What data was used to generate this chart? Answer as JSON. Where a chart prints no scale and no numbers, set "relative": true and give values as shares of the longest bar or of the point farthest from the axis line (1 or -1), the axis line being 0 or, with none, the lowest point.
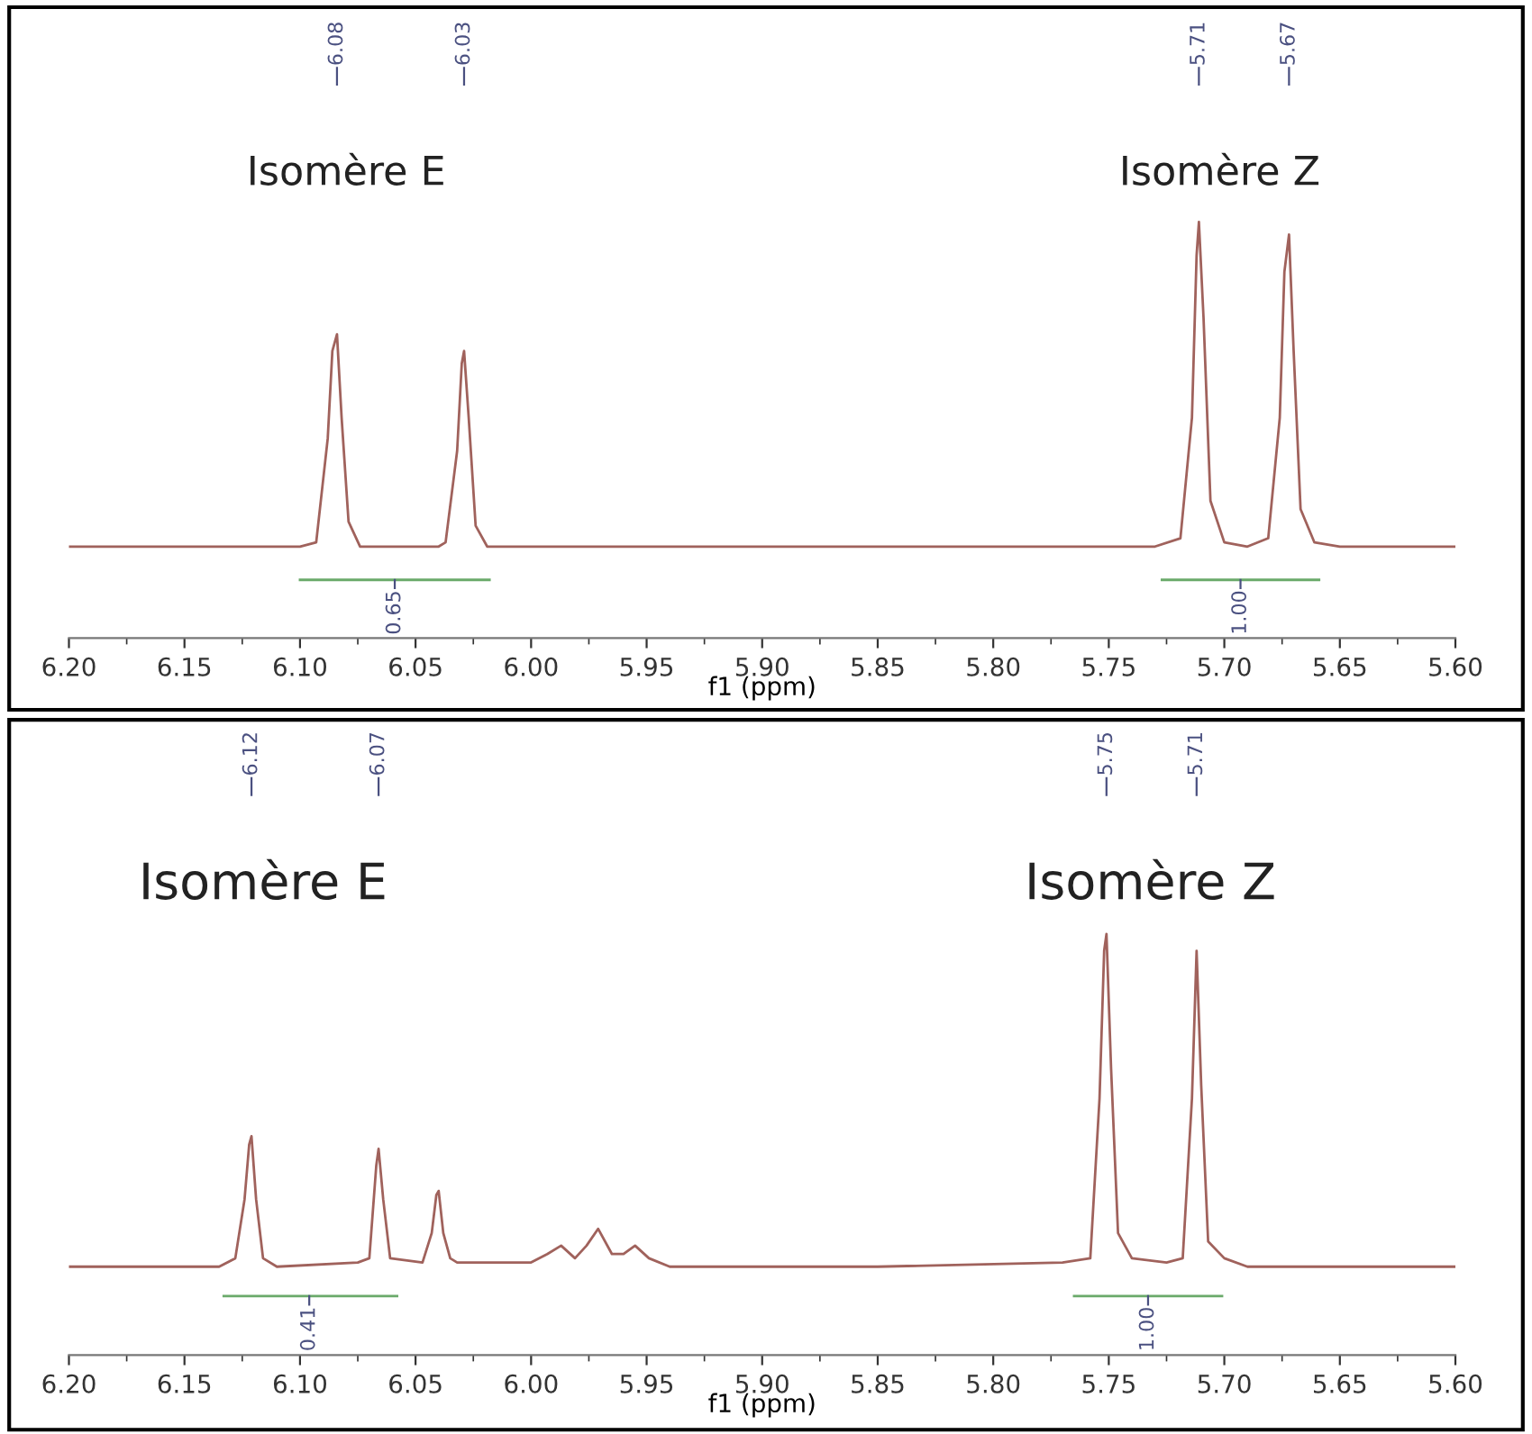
{
  "chart_data": [
    {
      "type": "line",
      "xlabel": "f1 (ppm)",
      "relative": true,
      "xlim": [
        6.2,
        5.6
      ],
      "xticks": [
        {
          "value": 6.2,
          "label": "6.20"
        },
        {
          "value": 6.175,
          "label": null
        },
        {
          "value": 6.15,
          "label": "6.15"
        },
        {
          "value": 6.125,
          "label": null
        },
        {
          "value": 6.1,
          "label": "6.10"
        },
        {
          "value": 6.075,
          "label": null
        },
        {
          "value": 6.05,
          "label": "6.05"
        },
        {
          "value": 6.025,
          "label": null
        },
        {
          "value": 6.0,
          "label": "6.00"
        },
        {
          "value": 5.975,
          "label": null
        },
        {
          "value": 5.95,
          "label": "5.95"
        },
        {
          "value": 5.925,
          "label": null
        },
        {
          "value": 5.9,
          "label": "5.90"
        },
        {
          "value": 5.875,
          "label": null
        },
        {
          "value": 5.85,
          "label": "5.85"
        },
        {
          "value": 5.825,
          "label": null
        },
        {
          "value": 5.8,
          "label": "5.80"
        },
        {
          "value": 5.775,
          "label": null
        },
        {
          "value": 5.75,
          "label": "5.75"
        },
        {
          "value": 5.725,
          "label": null
        },
        {
          "value": 5.7,
          "label": "5.70"
        },
        {
          "value": 5.675,
          "label": null
        },
        {
          "value": 5.65,
          "label": "5.65"
        },
        {
          "value": 5.625,
          "label": null
        },
        {
          "value": 5.6,
          "label": "5.60"
        }
      ],
      "series": [
        {
          "color": "#a0625c",
          "x": [
            6.2,
            6.1,
            6.093,
            6.088,
            6.086,
            6.084,
            6.082,
            6.079,
            6.074,
            6.04,
            6.037,
            6.032,
            6.03,
            6.029,
            6.027,
            6.024,
            6.019,
            5.9,
            5.73,
            5.719,
            5.714,
            5.712,
            5.711,
            5.709,
            5.706,
            5.7,
            5.69,
            5.681,
            5.676,
            5.674,
            5.672,
            5.67,
            5.667,
            5.661,
            5.65,
            5.6
          ],
          "values": [
            0.22,
            0.22,
            0.23,
            0.48,
            0.69,
            0.73,
            0.53,
            0.28,
            0.22,
            0.22,
            0.23,
            0.45,
            0.66,
            0.69,
            0.53,
            0.27,
            0.22,
            0.22,
            0.22,
            0.24,
            0.53,
            0.92,
            1,
            0.77,
            0.33,
            0.23,
            0.22,
            0.24,
            0.53,
            0.88,
            0.97,
            0.69,
            0.31,
            0.23,
            0.22,
            0.22
          ]
        },
        {
          "color": "#6aaa6a",
          "x": [
            6.1,
            6.018
          ],
          "values": [
            0.14,
            0.14
          ]
        },
        {
          "color": "#6aaa6a",
          "x": [
            5.727,
            5.659
          ],
          "values": [
            0.14,
            0.14
          ]
        }
      ],
      "annotations": [
        {
          "text": "6.08",
          "x": 6.084
        },
        {
          "text": "6.03",
          "x": 6.029
        },
        {
          "text": "5.71",
          "x": 5.711
        },
        {
          "text": "5.67",
          "x": 5.672
        },
        "Isomère E",
        "Isomère Z",
        {
          "text": "0.65",
          "x": 6.059,
          "y": 0.14
        },
        {
          "text": "1.00",
          "x": 5.693,
          "y": 0.14
        }
      ],
      "legend": false,
      "grid": false
    },
    {
      "type": "line",
      "xlabel": "f1 (ppm)",
      "relative": true,
      "xlim": [
        6.2,
        5.6
      ],
      "xticks": [
        {
          "value": 6.2,
          "label": "6.20"
        },
        {
          "value": 6.175,
          "label": null
        },
        {
          "value": 6.15,
          "label": "6.15"
        },
        {
          "value": 6.125,
          "label": null
        },
        {
          "value": 6.1,
          "label": "6.10"
        },
        {
          "value": 6.075,
          "label": null
        },
        {
          "value": 6.05,
          "label": "6.05"
        },
        {
          "value": 6.025,
          "label": null
        },
        {
          "value": 6.0,
          "label": "6.00"
        },
        {
          "value": 5.975,
          "label": null
        },
        {
          "value": 5.95,
          "label": "5.95"
        },
        {
          "value": 5.925,
          "label": null
        },
        {
          "value": 5.9,
          "label": "5.90"
        },
        {
          "value": 5.875,
          "label": null
        },
        {
          "value": 5.85,
          "label": "5.85"
        },
        {
          "value": 5.825,
          "label": null
        },
        {
          "value": 5.8,
          "label": "5.80"
        },
        {
          "value": 5.775,
          "label": null
        },
        {
          "value": 5.75,
          "label": "5.75"
        },
        {
          "value": 5.725,
          "label": null
        },
        {
          "value": 5.7,
          "label": "5.70"
        },
        {
          "value": 5.675,
          "label": null
        },
        {
          "value": 5.65,
          "label": "5.65"
        },
        {
          "value": 5.625,
          "label": null
        },
        {
          "value": 5.6,
          "label": "5.60"
        }
      ],
      "series": [
        {
          "color": "#a0625c",
          "x": [
            6.2,
            6.135,
            6.128,
            6.124,
            6.122,
            6.121,
            6.119,
            6.116,
            6.11,
            6.075,
            6.07,
            6.067,
            6.066,
            6.064,
            6.061,
            6.047,
            6.043,
            6.041,
            6.04,
            6.038,
            6.035,
            6.032,
            6.0,
            5.993,
            5.987,
            5.981,
            5.976,
            5.971,
            5.965,
            5.96,
            5.955,
            5.949,
            5.94,
            5.85,
            5.77,
            5.758,
            5.754,
            5.752,
            5.751,
            5.749,
            5.746,
            5.74,
            5.725,
            5.718,
            5.714,
            5.712,
            5.71,
            5.707,
            5.7,
            5.69,
            5.6
          ],
          "values": [
            0.21,
            0.21,
            0.23,
            0.37,
            0.5,
            0.52,
            0.37,
            0.23,
            0.21,
            0.22,
            0.23,
            0.45,
            0.49,
            0.37,
            0.23,
            0.22,
            0.29,
            0.38,
            0.39,
            0.29,
            0.23,
            0.22,
            0.22,
            0.24,
            0.26,
            0.23,
            0.26,
            0.3,
            0.24,
            0.24,
            0.26,
            0.23,
            0.21,
            0.21,
            0.22,
            0.23,
            0.61,
            0.96,
            1,
            0.68,
            0.29,
            0.23,
            0.22,
            0.23,
            0.61,
            0.96,
            0.64,
            0.27,
            0.23,
            0.21,
            0.21
          ]
        },
        {
          "color": "#6aaa6a",
          "x": [
            6.133,
            6.058
          ],
          "values": [
            0.14,
            0.14
          ]
        },
        {
          "color": "#6aaa6a",
          "x": [
            5.765,
            5.701
          ],
          "values": [
            0.14,
            0.14
          ]
        }
      ],
      "annotations": [
        {
          "text": "6.12",
          "x": 6.121
        },
        {
          "text": "6.07",
          "x": 6.066
        },
        {
          "text": "5.75",
          "x": 5.751
        },
        {
          "text": "5.71",
          "x": 5.712
        },
        "Isomère E",
        "Isomère Z",
        {
          "text": "0.41",
          "x": 6.096,
          "y": 0.14
        },
        {
          "text": "1.00",
          "x": 5.733,
          "y": 0.14
        }
      ],
      "legend": false,
      "grid": false
    }
  ]
}
